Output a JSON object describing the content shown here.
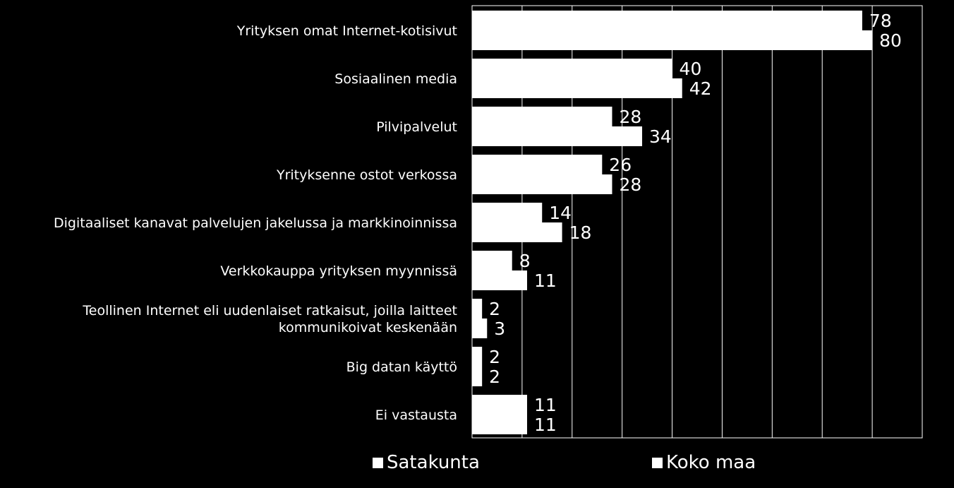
{
  "chart_data": {
    "type": "bar",
    "orientation": "horizontal",
    "categories": [
      "Yrityksen omat Internet-kotisivut",
      "Sosiaalinen media",
      "Pilvipalvelut",
      "Yrityksenne ostot verkossa",
      "Digitaaliset kanavat palvelujen jakelussa ja markkinoinnissa",
      "Verkkokauppa yrityksen myynnissä",
      "Teollinen Internet eli uudenlaiset ratkaisut, joilla laitteet kommunikoivat keskenään",
      "Big datan käyttö",
      "Ei vastausta"
    ],
    "category_lines": [
      [
        "Yrityksen omat Internet-kotisivut"
      ],
      [
        "Sosiaalinen media"
      ],
      [
        "Pilvipalvelut"
      ],
      [
        "Yrityksenne ostot verkossa"
      ],
      [
        "Digitaaliset kanavat palvelujen jakelussa ja markkinoinnissa"
      ],
      [
        "Verkkokauppa yrityksen myynnissä"
      ],
      [
        "Teollinen Internet eli uudenlaiset ratkaisut, joilla laitteet",
        "kommunikoivat keskenään"
      ],
      [
        "Big datan käyttö"
      ],
      [
        "Ei vastausta"
      ]
    ],
    "series": [
      {
        "name": "Satakunta",
        "values": [
          78,
          40,
          28,
          26,
          14,
          8,
          2,
          2,
          11
        ]
      },
      {
        "name": "Koko maa",
        "values": [
          80,
          42,
          34,
          28,
          18,
          11,
          3,
          2,
          11
        ]
      }
    ],
    "xlim": [
      0,
      90
    ],
    "grid": true,
    "legend_position": "bottom",
    "colors": {
      "background": "#000000",
      "bars": "#ffffff",
      "text": "#ffffff",
      "grid": "#ffffff"
    }
  }
}
